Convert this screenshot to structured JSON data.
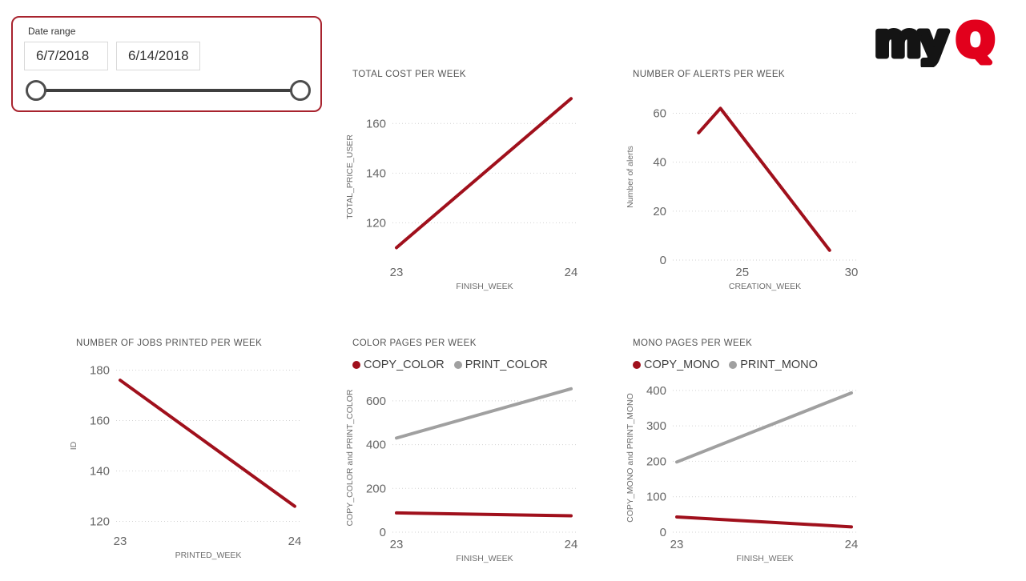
{
  "logo": {
    "text_my": "my",
    "text_q": "Q",
    "color_my": "#141414",
    "color_q": "#e2001c"
  },
  "slicer": {
    "label": "Date range",
    "start_value": "6/7/2018",
    "end_value": "6/14/2018",
    "border_color": "#a8232e"
  },
  "colors": {
    "series_red": "#a0101c",
    "series_gray": "#a0a0a0",
    "grid": "#d2d2d2",
    "tick_text": "#666666",
    "title_text": "#535353"
  },
  "chart_data": [
    {
      "type": "line",
      "title": "TOTAL COST PER WEEK",
      "xlabel": "FINISH_WEEK",
      "ylabel": "TOTAL_PRICE_USER",
      "xlim": [
        23,
        24
      ],
      "ylim": [
        105,
        172
      ],
      "xticks": [
        23,
        24
      ],
      "yticks": [
        120,
        140,
        160
      ],
      "grid": "dotted-horizontal",
      "legend": false,
      "series": [
        {
          "name": "TOTAL_PRICE_USER",
          "color": "#a0101c",
          "x": [
            23,
            24
          ],
          "y": [
            110,
            170
          ]
        }
      ]
    },
    {
      "type": "line",
      "title": "NUMBER OF ALERTS PER WEEK",
      "xlabel": "CREATION_WEEK",
      "ylabel": "Number of alerts",
      "xlim": [
        22,
        30
      ],
      "ylim": [
        0,
        68
      ],
      "xticks": [
        25,
        30
      ],
      "yticks": [
        0,
        20,
        40,
        60
      ],
      "grid": "dotted-horizontal",
      "legend": false,
      "series": [
        {
          "name": "Number of alerts",
          "color": "#a0101c",
          "x": [
            23,
            24,
            29
          ],
          "y": [
            52,
            62,
            4
          ]
        }
      ]
    },
    {
      "type": "line",
      "title": "NUMBER OF JOBS PRINTED PER WEEK",
      "xlabel": "PRINTED_WEEK",
      "ylabel": "ID",
      "xlim": [
        23,
        24
      ],
      "ylim": [
        117,
        183
      ],
      "xticks": [
        23,
        24
      ],
      "yticks": [
        120,
        140,
        160,
        180
      ],
      "grid": "dotted-horizontal",
      "legend": false,
      "series": [
        {
          "name": "ID",
          "color": "#a0101c",
          "x": [
            23,
            24
          ],
          "y": [
            176,
            126
          ]
        }
      ]
    },
    {
      "type": "line",
      "title": "COLOR PAGES PER WEEK",
      "xlabel": "FINISH_WEEK",
      "ylabel": "COPY_COLOR and PRINT_COLOR",
      "xlim": [
        23,
        24
      ],
      "ylim": [
        0,
        680
      ],
      "xticks": [
        23,
        24
      ],
      "yticks": [
        0,
        200,
        400,
        600
      ],
      "grid": "dotted-horizontal",
      "legend": true,
      "series": [
        {
          "name": "COPY_COLOR",
          "color": "#a0101c",
          "x": [
            23,
            24
          ],
          "y": [
            88,
            75
          ]
        },
        {
          "name": "PRINT_COLOR",
          "color": "#a0a0a0",
          "x": [
            23,
            24
          ],
          "y": [
            430,
            655
          ]
        }
      ]
    },
    {
      "type": "line",
      "title": "MONO PAGES PER WEEK",
      "xlabel": "FINISH_WEEK",
      "ylabel": "COPY_MONO and PRINT_MONO",
      "xlim": [
        23,
        24
      ],
      "ylim": [
        0,
        420
      ],
      "xticks": [
        23,
        24
      ],
      "yticks": [
        0,
        100,
        200,
        300,
        400
      ],
      "grid": "dotted-horizontal",
      "legend": true,
      "series": [
        {
          "name": "COPY_MONO",
          "color": "#a0101c",
          "x": [
            23,
            24
          ],
          "y": [
            43,
            15
          ]
        },
        {
          "name": "PRINT_MONO",
          "color": "#a0a0a0",
          "x": [
            23,
            24
          ],
          "y": [
            198,
            393
          ]
        }
      ]
    }
  ]
}
